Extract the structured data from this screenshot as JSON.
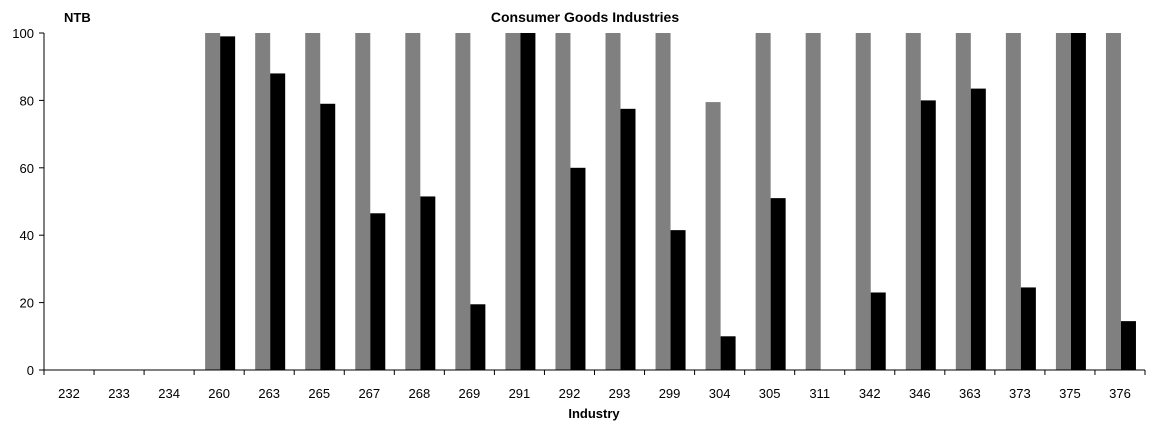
{
  "chart_data": {
    "type": "bar",
    "title": "Consumer Goods Industries",
    "ylabel": "NTB",
    "xlabel": "Industry",
    "ylim": [
      0,
      100
    ],
    "yticks": [
      0,
      20,
      40,
      60,
      80,
      100
    ],
    "grid": false,
    "legend": "none",
    "categories": [
      "232",
      "233",
      "234",
      "260",
      "263",
      "265",
      "267",
      "268",
      "269",
      "291",
      "292",
      "293",
      "299",
      "304",
      "305",
      "311",
      "342",
      "346",
      "363",
      "373",
      "375",
      "376"
    ],
    "series": [
      {
        "color": "#808080",
        "values": [
          0,
          0,
          0,
          100,
          100,
          100,
          100,
          100,
          100,
          100,
          100,
          100,
          100,
          79.5,
          100,
          100,
          100,
          100,
          100,
          100,
          100,
          100
        ]
      },
      {
        "color": "#000000",
        "values": [
          0,
          0,
          0,
          99,
          88,
          79,
          46.5,
          51.5,
          19.5,
          100,
          60,
          77.5,
          41.5,
          10,
          51,
          0,
          23,
          80,
          83.5,
          24.5,
          100,
          14.5
        ]
      }
    ]
  }
}
